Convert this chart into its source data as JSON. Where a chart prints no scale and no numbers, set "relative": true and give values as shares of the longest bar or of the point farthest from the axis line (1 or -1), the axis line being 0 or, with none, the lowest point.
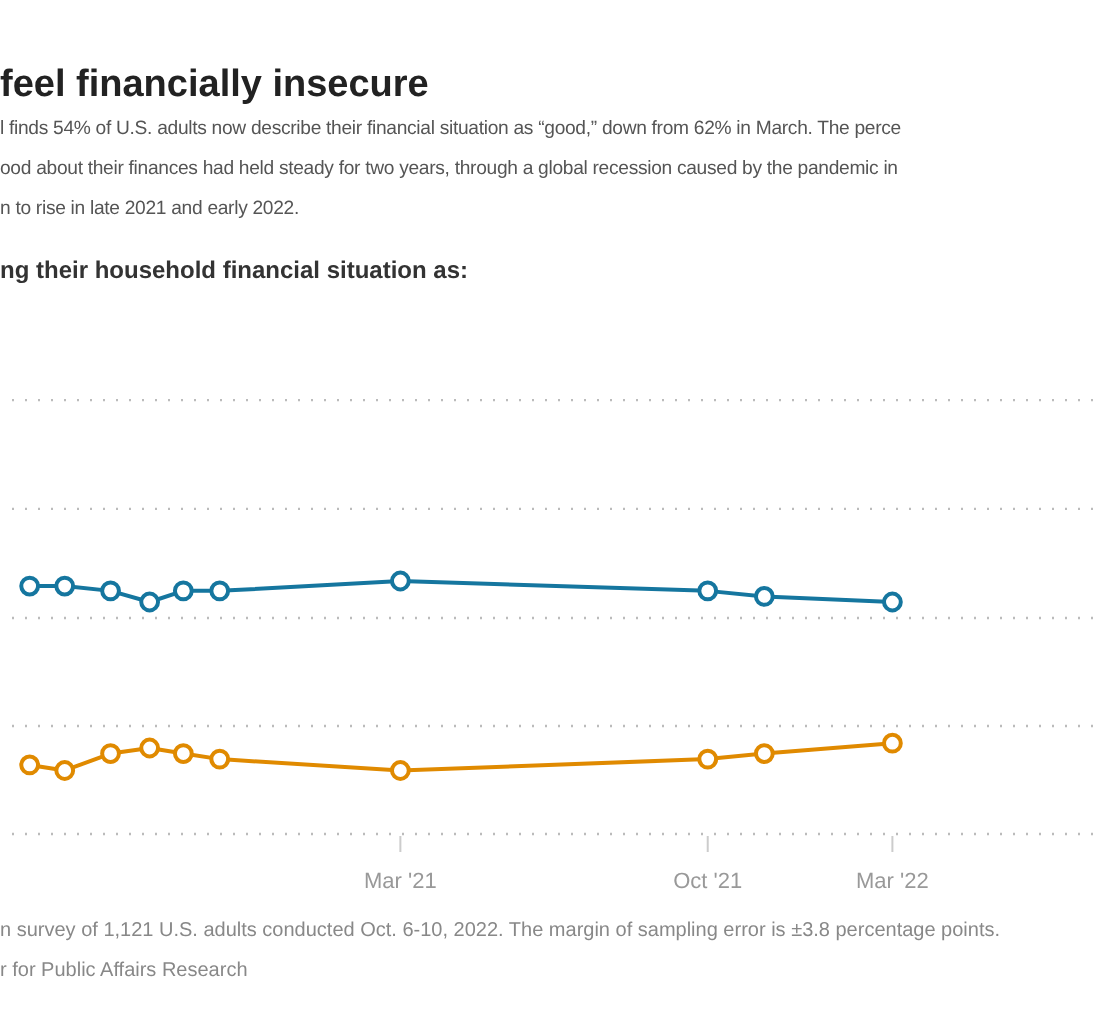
{
  "chart_data": {
    "type": "line",
    "title": "feel financially insecure",
    "subtitle": "l finds 54% of U.S. adults now describe their financial situation as “good,” down from 62% in March. The perce\nood about their finances had held steady for two years, through a global recession caused by the pandemic in\nn to rise in late 2021 and early 2022.",
    "relative": true,
    "marker": "circle",
    "ref_lines": [
      {
        "axis": "y",
        "value": 1.715,
        "color": "#bbbbbb",
        "line_style": "dotted"
      },
      {
        "axis": "y",
        "value": 1.285,
        "color": "#bbbbbb",
        "line_style": "dotted"
      },
      {
        "axis": "y",
        "value": 0.854,
        "color": "#bbbbbb",
        "line_style": "dotted"
      },
      {
        "axis": "y",
        "value": 0.427,
        "color": "#bbbbbb",
        "line_style": "dotted"
      }
    ],
    "line_style": "solid",
    "xlim": [
      "2020-05-08",
      "2022-08-02"
    ],
    "xticks": [
      {
        "value": "2021-03-01",
        "label": "Mar '21"
      },
      {
        "value": "2021-10-15",
        "label": "Oct '21"
      },
      {
        "value": "2022-03-01",
        "label": "Mar '22"
      }
    ],
    "x": [
      "2020-05-30",
      "2020-06-25",
      "2020-07-29",
      "2020-08-27",
      "2020-09-21",
      "2020-10-18",
      "2021-03-01",
      "2021-10-15",
      "2021-11-26",
      "2022-03-01"
    ],
    "series": [
      {
        "color": "#15769f",
        "values": [
          0.98,
          0.98,
          0.961,
          0.917,
          0.961,
          0.961,
          1.0,
          0.961,
          0.939,
          0.917
        ]
      },
      {
        "color": "#e08a00",
        "values": [
          0.273,
          0.251,
          0.318,
          0.34,
          0.318,
          0.296,
          0.251,
          0.296,
          0.318,
          0.359
        ]
      }
    ],
    "annotations": [
      "ng their household financial situation as:",
      "n survey of 1,121 U.S. adults conducted Oct. 6-10, 2022. The margin of sampling error is ±3.8 percentage points.",
      "r for Public Affairs Research"
    ]
  }
}
